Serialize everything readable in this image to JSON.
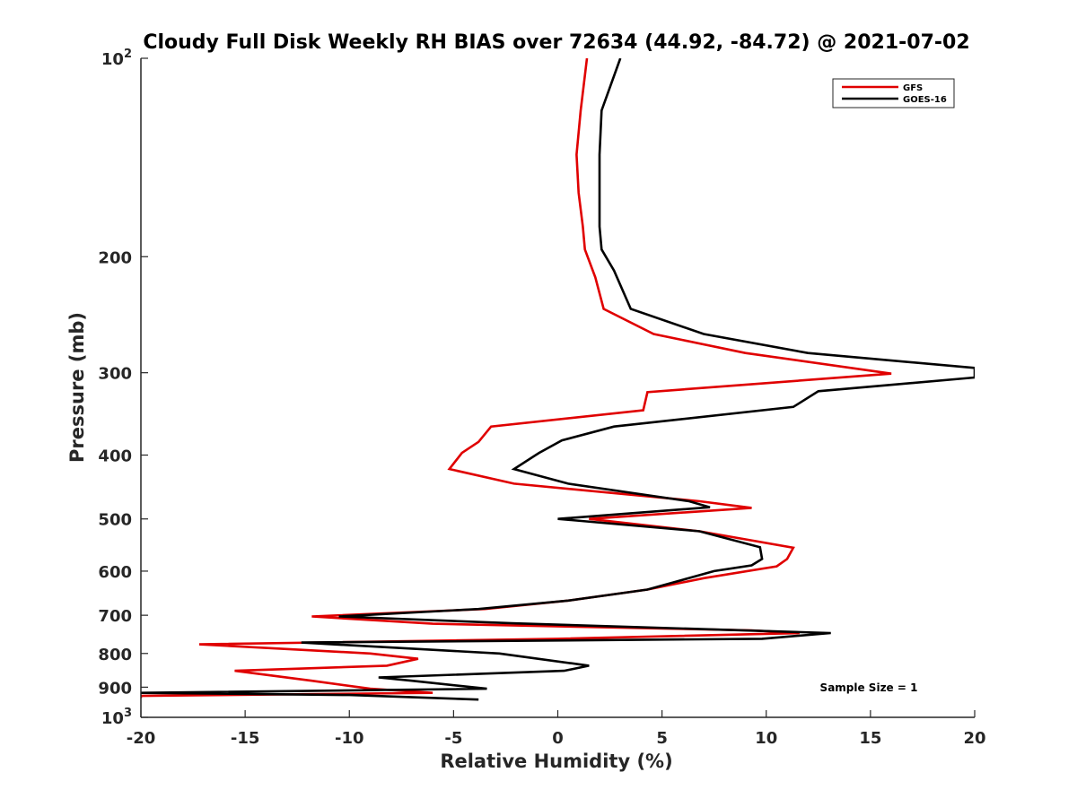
{
  "chart_data": {
    "type": "line",
    "title": "Cloudy Full Disk Weekly RH BIAS over 72634 (44.92, -84.72) @ 2021-07-02",
    "xlabel": "Relative Humidity (%)",
    "ylabel": "Pressure (mb)",
    "xlim": [
      -20,
      20
    ],
    "ylim": [
      100,
      1000
    ],
    "yscale": "log",
    "y_reversed": true,
    "grid": false,
    "legend_position": "top-right",
    "x_ticks": [
      "-20",
      "-15",
      "-10",
      "-5",
      "0",
      "5",
      "10",
      "15",
      "20"
    ],
    "y_ticks": [
      {
        "value": 100,
        "base": "10",
        "exp": "2"
      },
      {
        "value": 200,
        "label": "200"
      },
      {
        "value": 300,
        "label": "300"
      },
      {
        "value": 400,
        "label": "400"
      },
      {
        "value": 500,
        "label": "500"
      },
      {
        "value": 600,
        "label": "600"
      },
      {
        "value": 700,
        "label": "700"
      },
      {
        "value": 800,
        "label": "800"
      },
      {
        "value": 900,
        "label": "900"
      },
      {
        "value": 1000,
        "base": "10",
        "exp": "3"
      }
    ],
    "series": [
      {
        "name": "GFS",
        "color": "#e00000",
        "points": [
          [
            1.4,
            100
          ],
          [
            1.1,
            120
          ],
          [
            0.9,
            140
          ],
          [
            1.0,
            160
          ],
          [
            1.2,
            180
          ],
          [
            1.3,
            195
          ],
          [
            1.8,
            215
          ],
          [
            2.2,
            240
          ],
          [
            4.6,
            262
          ],
          [
            9.0,
            280
          ],
          [
            16.0,
            301
          ],
          [
            4.3,
            321
          ],
          [
            4.1,
            342
          ],
          [
            -3.2,
            362
          ],
          [
            -3.8,
            382
          ],
          [
            -4.6,
            397
          ],
          [
            -5.2,
            420
          ],
          [
            -2.1,
            442
          ],
          [
            6.8,
            470
          ],
          [
            9.3,
            481
          ],
          [
            1.5,
            500
          ],
          [
            6.8,
            522
          ],
          [
            11.3,
            553
          ],
          [
            11.0,
            575
          ],
          [
            10.5,
            590
          ],
          [
            7.0,
            615
          ],
          [
            4.3,
            640
          ],
          [
            0.5,
            665
          ],
          [
            -3.5,
            685
          ],
          [
            -11.8,
            703
          ],
          [
            -6.0,
            721
          ],
          [
            9.3,
            738
          ],
          [
            11.6,
            745
          ],
          [
            0.0,
            760
          ],
          [
            -17.2,
            775
          ],
          [
            -9.0,
            800
          ],
          [
            -6.7,
            815
          ],
          [
            -8.2,
            835
          ],
          [
            -15.5,
            850
          ],
          [
            -11.8,
            880
          ],
          [
            -9.0,
            905
          ],
          [
            -6.0,
            918
          ],
          [
            -20.0,
            928
          ],
          [
            -20.0,
            935
          ]
        ]
      },
      {
        "name": "GOES-16",
        "color": "#000000",
        "points": [
          [
            3.0,
            100
          ],
          [
            2.1,
            120
          ],
          [
            2.0,
            140
          ],
          [
            2.0,
            160
          ],
          [
            2.0,
            180
          ],
          [
            2.1,
            195
          ],
          [
            2.7,
            210
          ],
          [
            3.5,
            240
          ],
          [
            7.0,
            262
          ],
          [
            12.0,
            280
          ],
          [
            20.0,
            295
          ],
          [
            20.0,
            305
          ],
          [
            12.5,
            320
          ],
          [
            11.3,
            338
          ],
          [
            2.7,
            362
          ],
          [
            0.2,
            380
          ],
          [
            -0.9,
            397
          ],
          [
            -2.1,
            420
          ],
          [
            0.5,
            442
          ],
          [
            6.3,
            470
          ],
          [
            7.3,
            480
          ],
          [
            0.0,
            500
          ],
          [
            6.8,
            522
          ],
          [
            9.7,
            552
          ],
          [
            9.8,
            575
          ],
          [
            9.3,
            588
          ],
          [
            7.5,
            600
          ],
          [
            4.3,
            640
          ],
          [
            0.5,
            665
          ],
          [
            -3.8,
            685
          ],
          [
            -10.5,
            703
          ],
          [
            -2.2,
            720
          ],
          [
            13.1,
            745
          ],
          [
            9.8,
            760
          ],
          [
            -12.3,
            770
          ],
          [
            -2.8,
            800
          ],
          [
            1.5,
            835
          ],
          [
            0.3,
            850
          ],
          [
            -8.6,
            870
          ],
          [
            -7.0,
            880
          ],
          [
            -3.4,
            905
          ],
          [
            -20.0,
            918
          ],
          [
            -10.0,
            925
          ],
          [
            -3.8,
            940
          ]
        ]
      }
    ],
    "annotation": "Sample Size = 1"
  }
}
